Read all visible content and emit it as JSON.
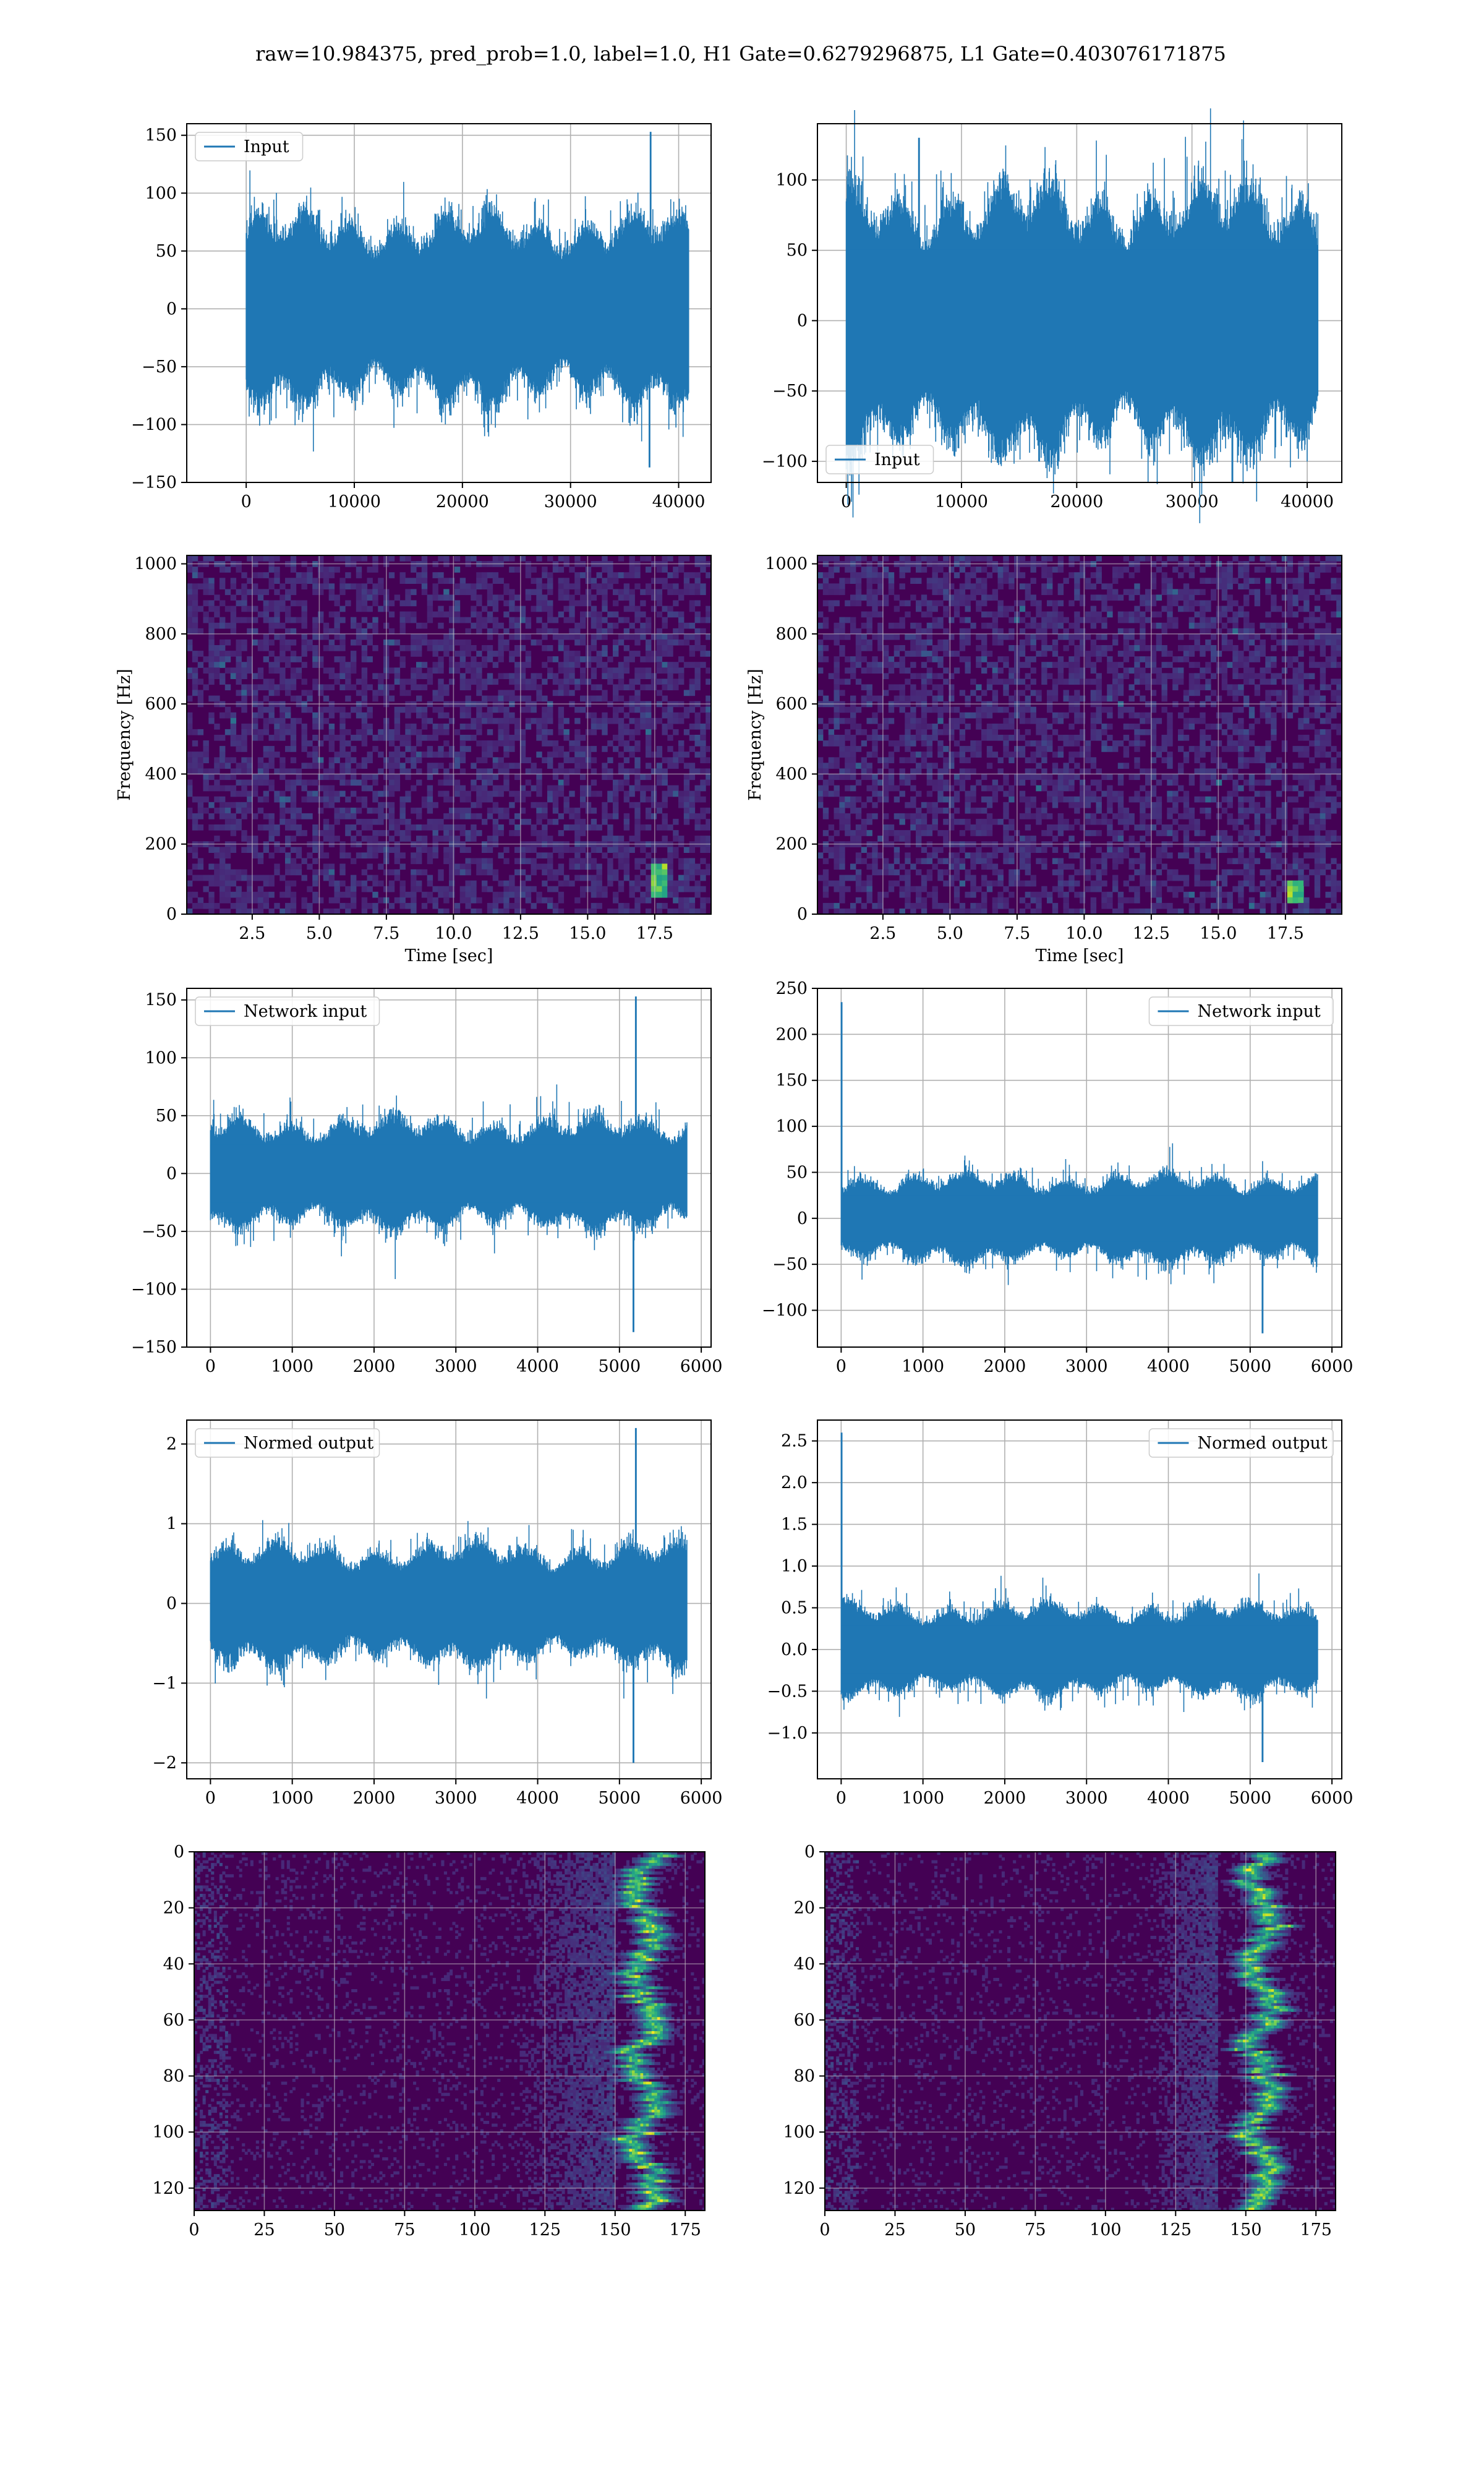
{
  "suptitle": "raw=10.984375, pred_prob=1.0, label=1.0, H1 Gate=0.6279296875, L1 Gate=0.403076171875",
  "colors": {
    "line": "#1f77b4",
    "grid": "#b0b0b0",
    "axes": "#000000",
    "viridis_low": "#440154",
    "viridis_high": "#fde725"
  },
  "chart_data": [
    {
      "id": "h1-input",
      "type": "line",
      "series": [
        {
          "name": "Input"
        }
      ],
      "legend": "upper left",
      "xlim": [
        -5500,
        43000
      ],
      "ylim": [
        -150,
        160
      ],
      "xticks": [
        0,
        10000,
        20000,
        30000,
        40000
      ],
      "yticks": [
        -150,
        -100,
        -50,
        0,
        50,
        100,
        150
      ],
      "xticklabels": [
        "0",
        "10000",
        "20000",
        "30000",
        "40000"
      ],
      "yticklabels": [
        "−150",
        "−100",
        "−50",
        "0",
        "50",
        "100",
        "150"
      ],
      "n_points": 40960,
      "band_amplitude": 60,
      "peak_max": 153,
      "peak_max_x": 37400,
      "peak_min": -137,
      "peak_min_x": 37300,
      "grid": true
    },
    {
      "id": "l1-input",
      "type": "line",
      "series": [
        {
          "name": "Input"
        }
      ],
      "legend": "lower left",
      "xlim": [
        -2500,
        43000
      ],
      "ylim": [
        -115,
        140
      ],
      "xticks": [
        0,
        10000,
        20000,
        30000,
        40000
      ],
      "yticks": [
        -100,
        -50,
        0,
        50,
        100
      ],
      "xticklabels": [
        "0",
        "10000",
        "20000",
        "30000",
        "40000"
      ],
      "yticklabels": [
        "−100",
        "−50",
        "0",
        "50",
        "100"
      ],
      "n_points": 40960,
      "band_amplitude": 70,
      "peak_max": 130,
      "peak_max_x": 6300,
      "peak_min": -115,
      "peak_min_x": 33500,
      "grid": true
    },
    {
      "id": "h1-spectrogram",
      "type": "heatmap",
      "xlabel": "Time [sec]",
      "ylabel": "Frequency [Hz]",
      "xlim": [
        0.06,
        19.6
      ],
      "ylim": [
        0,
        1024
      ],
      "xticks": [
        2.5,
        5,
        7.5,
        10,
        12.5,
        15,
        17.5
      ],
      "yticks": [
        0,
        200,
        400,
        600,
        800,
        1000
      ],
      "xticklabels": [
        "2.5",
        "5.0",
        "7.5",
        "10.0",
        "12.5",
        "15.0",
        "17.5"
      ],
      "yticklabels": [
        "0",
        "200",
        "400",
        "600",
        "800",
        "1000"
      ],
      "colormap": "viridis",
      "feature_time": 17.7,
      "feature_freq": [
        40,
        140
      ],
      "grid": true
    },
    {
      "id": "l1-spectrogram",
      "type": "heatmap",
      "xlabel": "Time [sec]",
      "ylabel": "Frequency [Hz]",
      "xlim": [
        0.06,
        19.6
      ],
      "ylim": [
        0,
        1024
      ],
      "xticks": [
        2.5,
        5,
        7.5,
        10,
        12.5,
        15,
        17.5
      ],
      "yticks": [
        0,
        200,
        400,
        600,
        800,
        1000
      ],
      "xticklabels": [
        "2.5",
        "5.0",
        "7.5",
        "10.0",
        "12.5",
        "15.0",
        "17.5"
      ],
      "yticklabels": [
        "0",
        "200",
        "400",
        "600",
        "800",
        "1000"
      ],
      "colormap": "viridis",
      "feature_time": 17.9,
      "feature_freq": [
        30,
        100
      ],
      "grid": true
    },
    {
      "id": "h1-network-input",
      "type": "line",
      "series": [
        {
          "name": "Network input"
        }
      ],
      "legend": "upper left",
      "xlim": [
        -290,
        6120
      ],
      "ylim": [
        -150,
        160
      ],
      "xticks": [
        0,
        1000,
        2000,
        3000,
        4000,
        5000,
        6000
      ],
      "yticks": [
        -150,
        -100,
        -50,
        0,
        50,
        100,
        150
      ],
      "xticklabels": [
        "0",
        "1000",
        "2000",
        "3000",
        "4000",
        "5000",
        "6000"
      ],
      "yticklabels": [
        "−150",
        "−100",
        "−50",
        "0",
        "50",
        "100",
        "150"
      ],
      "n_points": 5830,
      "band_amplitude": 35,
      "peak_max": 153,
      "peak_max_x": 5200,
      "peak_min": -137,
      "peak_min_x": 5170,
      "grid": true
    },
    {
      "id": "l1-network-input",
      "type": "line",
      "series": [
        {
          "name": "Network input"
        }
      ],
      "legend": "upper right",
      "xlim": [
        -290,
        6120
      ],
      "ylim": [
        -140,
        250
      ],
      "xticks": [
        0,
        1000,
        2000,
        3000,
        4000,
        5000,
        6000
      ],
      "yticks": [
        -100,
        -50,
        0,
        50,
        100,
        150,
        200,
        250
      ],
      "xticklabels": [
        "0",
        "1000",
        "2000",
        "3000",
        "4000",
        "5000",
        "6000"
      ],
      "yticklabels": [
        "−100",
        "−50",
        "0",
        "50",
        "100",
        "150",
        "200",
        "250"
      ],
      "n_points": 5830,
      "band_amplitude": 35,
      "peak_max": 235,
      "peak_max_x": 5,
      "peak_min": -125,
      "peak_min_x": 5150,
      "grid": true
    },
    {
      "id": "h1-normed-output",
      "type": "line",
      "series": [
        {
          "name": "Normed output"
        }
      ],
      "legend": "upper left",
      "xlim": [
        -290,
        6120
      ],
      "ylim": [
        -2.2,
        2.3
      ],
      "xticks": [
        0,
        1000,
        2000,
        3000,
        4000,
        5000,
        6000
      ],
      "yticks": [
        -2,
        -1,
        0,
        1,
        2
      ],
      "xticklabels": [
        "0",
        "1000",
        "2000",
        "3000",
        "4000",
        "5000",
        "6000"
      ],
      "yticklabels": [
        "−2",
        "−1",
        "0",
        "1",
        "2"
      ],
      "n_points": 5830,
      "band_amplitude": 0.55,
      "peak_max": 2.2,
      "peak_max_x": 5200,
      "peak_min": -2.0,
      "peak_min_x": 5170,
      "grid": true
    },
    {
      "id": "l1-normed-output",
      "type": "line",
      "series": [
        {
          "name": "Normed output"
        }
      ],
      "legend": "upper right",
      "xlim": [
        -290,
        6120
      ],
      "ylim": [
        -1.55,
        2.75
      ],
      "xticks": [
        0,
        1000,
        2000,
        3000,
        4000,
        5000,
        6000
      ],
      "yticks": [
        -1.0,
        -0.5,
        0.0,
        0.5,
        1.0,
        1.5,
        2.0,
        2.5
      ],
      "xticklabels": [
        "0",
        "1000",
        "2000",
        "3000",
        "4000",
        "5000",
        "6000"
      ],
      "yticklabels": [
        "−1.0",
        "−0.5",
        "0.0",
        "0.5",
        "1.0",
        "1.5",
        "2.0",
        "2.5"
      ],
      "n_points": 5830,
      "band_amplitude": 0.4,
      "peak_max": 2.6,
      "peak_max_x": 5,
      "peak_min": -1.35,
      "peak_min_x": 5150,
      "grid": true
    },
    {
      "id": "h1-feature-map",
      "type": "heatmap",
      "xlim": [
        0,
        182
      ],
      "ylim": [
        128,
        0
      ],
      "xticks": [
        0,
        25,
        50,
        75,
        100,
        125,
        150,
        175
      ],
      "yticks": [
        0,
        20,
        40,
        60,
        80,
        100,
        120
      ],
      "xticklabels": [
        "0",
        "25",
        "50",
        "75",
        "100",
        "125",
        "150",
        "175"
      ],
      "yticklabels": [
        "0",
        "20",
        "40",
        "60",
        "80",
        "100",
        "120"
      ],
      "colormap": "viridis",
      "n_rows": 128,
      "n_cols": 182,
      "hot_region": [
        150,
        170
      ],
      "grid": true
    },
    {
      "id": "l1-feature-map",
      "type": "heatmap",
      "xlim": [
        0,
        182
      ],
      "ylim": [
        128,
        0
      ],
      "xticks": [
        0,
        25,
        50,
        75,
        100,
        125,
        150,
        175
      ],
      "yticks": [
        0,
        20,
        40,
        60,
        80,
        100,
        120
      ],
      "xticklabels": [
        "0",
        "25",
        "50",
        "75",
        "100",
        "125",
        "150",
        "175"
      ],
      "yticklabels": [
        "0",
        "20",
        "40",
        "60",
        "80",
        "100",
        "120"
      ],
      "colormap": "viridis",
      "n_rows": 128,
      "n_cols": 182,
      "hot_region": [
        140,
        170
      ],
      "grid": true
    }
  ]
}
